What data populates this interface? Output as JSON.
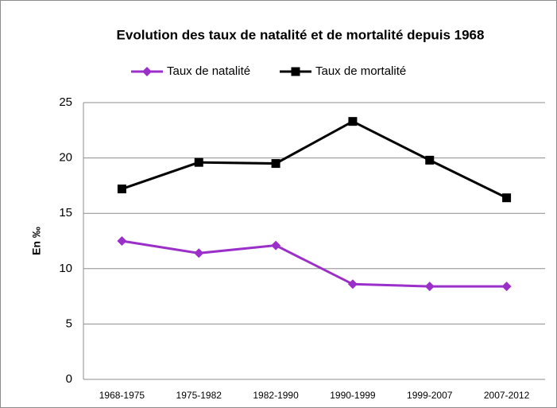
{
  "chart_data": {
    "type": "line",
    "title": "Evolution des taux de natalité et de mortalité depuis 1968",
    "y_label": "En ‰",
    "categories": [
      "1968-1975",
      "1975-1982",
      "1982-1990",
      "1990-1999",
      "1999-2007",
      "2007-2012"
    ],
    "series": [
      {
        "name": "Taux de natalité",
        "color": "#9b2fc9",
        "marker": "diamond",
        "values": [
          12.5,
          11.4,
          12.1,
          8.6,
          8.4,
          8.4
        ]
      },
      {
        "name": "Taux de mortalité",
        "color": "#000000",
        "marker": "square",
        "values": [
          17.2,
          19.6,
          19.5,
          23.3,
          19.8,
          16.4
        ]
      }
    ],
    "ylim": [
      0,
      25
    ],
    "yticks": [
      0,
      5,
      10,
      15,
      20,
      25
    ],
    "grid": true,
    "legend": "top"
  }
}
